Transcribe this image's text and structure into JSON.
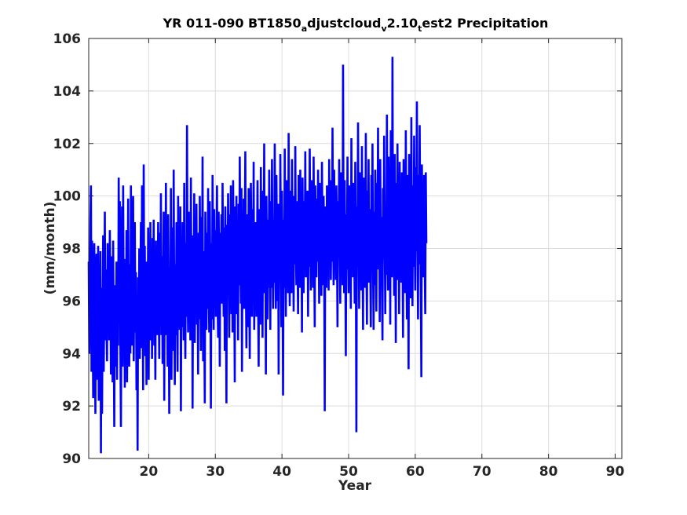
{
  "chart_data": {
    "type": "line",
    "title": {
      "part1": "YR 011-090 BT1850",
      "sub1": "a",
      "part2": "djustcloud",
      "sub2": "v",
      "part3": "2.10",
      "sub3": "t",
      "part4": "est2 Precipitation"
    },
    "xlabel": "Year",
    "ylabel": "(mm/month)",
    "xlim": [
      11,
      91
    ],
    "ylim": [
      90,
      106
    ],
    "xticks": [
      "20",
      "30",
      "40",
      "50",
      "60",
      "70",
      "80",
      "90"
    ],
    "yticks": [
      "90",
      "92",
      "94",
      "96",
      "98",
      "100",
      "102",
      "104",
      "106"
    ],
    "grid": true,
    "series": [
      {
        "color": "#0000ff",
        "x_start": 11.0,
        "x_step": 0.08333,
        "values": [
          97.5,
          94.0,
          96.0,
          99.0,
          100.4,
          93.3,
          98.3,
          96.0,
          92.3,
          95.5,
          98.2,
          94.6,
          91.7,
          96.8,
          97.8,
          93.0,
          95.1,
          98.1,
          92.2,
          96.9,
          94.8,
          97.9,
          90.2,
          96.5,
          91.7,
          95.5,
          98.5,
          93.3,
          96.0,
          99.4,
          94.5,
          97.2,
          95.0,
          93.7,
          98.2,
          95.4,
          97.0,
          94.5,
          98.7,
          96.3,
          93.2,
          97.7,
          95.2,
          92.9,
          98.3,
          94.8,
          91.2,
          96.6,
          93.5,
          95.3,
          97.5,
          93.0,
          97.4,
          94.3,
          100.7,
          95.7,
          99.8,
          94.3,
          91.2,
          96.2,
          99.6,
          93.5,
          100.4,
          95.4,
          97.6,
          92.7,
          96.0,
          93.9,
          98.7,
          92.9,
          96.1,
          99.9,
          94.7,
          93.5,
          97.4,
          94.0,
          100.4,
          96.8,
          94.3,
          98.5,
          100.0,
          93.7,
          96.6,
          99.0,
          94.8,
          97.1,
          92.6,
          95.3,
          90.3,
          96.9,
          94.0,
          98.0,
          93.8,
          96.7,
          99.0,
          94.2,
          100.4,
          96.5,
          92.6,
          101.2,
          95.7,
          98.1,
          93.9,
          97.5,
          92.8,
          96.6,
          94.5,
          98.8,
          93.0,
          97.6,
          95.2,
          99.0,
          94.5,
          96.9,
          93.8,
          98.4,
          95.8,
          99.1,
          94.3,
          96.4,
          93.0,
          98.3,
          95.6,
          97.2,
          94.7,
          99.0,
          96.2,
          93.8,
          98.6,
          95.3,
          100.1,
          94.7,
          97.7,
          93.6,
          96.4,
          99.4,
          92.2,
          97.8,
          95.8,
          100.5,
          94.7,
          96.9,
          93.5,
          99.3,
          96.5,
          91.7,
          97.3,
          94.8,
          100.3,
          93.0,
          96.8,
          98.8,
          94.1,
          101.0,
          95.8,
          92.8,
          97.4,
          94.7,
          99.0,
          96.2,
          93.3,
          100.0,
          95.5,
          97.8,
          94.9,
          99.6,
          91.8,
          97.0,
          95.0,
          99.0,
          96.5,
          94.5,
          100.5,
          95.6,
          93.8,
          98.2,
          95.4,
          102.7,
          96.5,
          94.8,
          99.4,
          95.7,
          97.6,
          94.5,
          100.7,
          96.0,
          98.5,
          91.9,
          97.4,
          95.8,
          100.1,
          94.4,
          98.9,
          96.0,
          99.7,
          95.1,
          97.3,
          93.2,
          98.6,
          95.3,
          100.0,
          97.1,
          94.1,
          99.2,
          96.0,
          101.5,
          93.7,
          97.9,
          95.5,
          92.1,
          99.4,
          96.4,
          94.9,
          98.6,
          95.7,
          100.3,
          96.6,
          94.8,
          99.8,
          96.8,
          91.9,
          98.2,
          95.3,
          100.8,
          97.4,
          94.9,
          99.5,
          96.6,
          98.7,
          95.4,
          97.5,
          100.4,
          96.0,
          94.6,
          99.4,
          96.8,
          93.5,
          98.6,
          97.0,
          99.3,
          95.9,
          100.5,
          97.6,
          95.4,
          98.8,
          94.1,
          99.6,
          96.5,
          92.1,
          98.9,
          96.3,
          100.1,
          97.0,
          94.6,
          99.3,
          96.8,
          100.4,
          95.5,
          98.6,
          94.8,
          100.6,
          97.9,
          96.6,
          92.9,
          99.6,
          97.3,
          100.0,
          95.5,
          98.3,
          94.5,
          99.7,
          96.6,
          101.5,
          97.8,
          95.9,
          100.3,
          93.3,
          98.6,
          96.8,
          99.9,
          95.7,
          98.3,
          101.7,
          96.6,
          94.2,
          99.3,
          97.6,
          95.0,
          100.3,
          96.5,
          93.8,
          98.6,
          100.5,
          97.9,
          95.4,
          99.5,
          96.5,
          101.3,
          94.9,
          98.2,
          96.3,
          99.0,
          95.4,
          97.7,
          100.6,
          96.0,
          93.5,
          99.5,
          97.5,
          95.1,
          101.1,
          96.8,
          98.8,
          94.6,
          100.2,
          97.5,
          102.0,
          96.3,
          98.5,
          93.2,
          100.0,
          97.2,
          95.3,
          99.1,
          96.5,
          101.0,
          97.7,
          94.9,
          99.8,
          96.5,
          101.4,
          98.0,
          95.7,
          99.1,
          96.7,
          102.0,
          97.5,
          95.7,
          100.8,
          98.2,
          96.0,
          99.7,
          93.2,
          98.5,
          96.9,
          101.6,
          97.8,
          95.0,
          100.2,
          97.6,
          92.4,
          99.1,
          96.5,
          101.8,
          98.3,
          95.4,
          100.6,
          97.3,
          99.5,
          96.3,
          102.4,
          97.8,
          95.8,
          100.2,
          98.7,
          96.3,
          101.4,
          97.1,
          99.4,
          95.6,
          100.0,
          97.4,
          101.9,
          98.1,
          96.6,
          99.8,
          97.4,
          95.5,
          100.8,
          98.1,
          96.5,
          101.0,
          97.4,
          99.2,
          94.8,
          100.7,
          97.8,
          96.3,
          99.8,
          98.1,
          101.7,
          96.9,
          99.3,
          97.6,
          100.2,
          95.4,
          99.4,
          97.3,
          101.8,
          98.5,
          96.4,
          100.6,
          97.9,
          99.3,
          96.5,
          101.5,
          97.8,
          95.0,
          100.4,
          98.3,
          96.9,
          99.9,
          97.5,
          101.0,
          98.8,
          95.9,
          100.5,
          97.1,
          99.5,
          96.2,
          101.3,
          98.4,
          96.6,
          100.0,
          97.6,
          91.8,
          99.6,
          98.3,
          96.5,
          100.4,
          97.9,
          99.6,
          96.4,
          101.4,
          98.2,
          100.6,
          96.8,
          99.1,
          97.5,
          102.6,
          98.8,
          96.6,
          101.0,
          97.9,
          99.2,
          96.8,
          100.4,
          98.4,
          95.0,
          99.8,
          97.7,
          101.4,
          98.3,
          95.9,
          100.9,
          97.6,
          99.3,
          96.6,
          105.0,
          98.2,
          96.3,
          100.6,
          97.7,
          93.9,
          99.3,
          97.2,
          101.5,
          98.6,
          96.3,
          100.4,
          97.9,
          99.2,
          95.7,
          102.2,
          97.5,
          99.8,
          96.9,
          100.5,
          98.3,
          95.9,
          101.3,
          97.7,
          91.0,
          99.6,
          97.3,
          102.8,
          98.6,
          95.7,
          100.9,
          97.3,
          99.6,
          96.4,
          101.9,
          98.2,
          94.9,
          100.7,
          97.8,
          99.3,
          96.5,
          102.4,
          97.6,
          95.1,
          100.2,
          98.1,
          101.4,
          96.7,
          99.5,
          97.5,
          95.0,
          100.8,
          98.2,
          102.0,
          97.3,
          94.9,
          99.4,
          96.6,
          101.0,
          97.9,
          95.6,
          100.5,
          98.0,
          102.6,
          97.2,
          99.8,
          95.2,
          101.4,
          97.9,
          99.2,
          96.4,
          94.5,
          100.3,
          97.6,
          102.3,
          98.6,
          95.5,
          99.5,
          97.0,
          103.1,
          98.1,
          96.4,
          101.5,
          97.4,
          100.0,
          95.1,
          102.5,
          98.6,
          96.9,
          105.3,
          97.8,
          99.8,
          96.2,
          101.6,
          98.4,
          94.4,
          100.5,
          97.4,
          102.0,
          96.8,
          99.3,
          95.5,
          101.3,
          97.9,
          99.7,
          96.7,
          100.9,
          98.0,
          94.6,
          101.4,
          97.6,
          99.8,
          96.3,
          102.5,
          98.3,
          95.3,
          100.8,
          97.6,
          93.4,
          101.6,
          97.9,
          99.3,
          96.1,
          103.0,
          98.0,
          95.8,
          100.4,
          97.3,
          102.3,
          98.5,
          96.4,
          101.1,
          97.9,
          103.6,
          98.6,
          95.3,
          100.8,
          97.4,
          102.7,
          98.8,
          96.5,
          93.1,
          101.2,
          98.5,
          99.6,
          96.9,
          100.8,
          97.5,
          95.5,
          100.9,
          98.2
        ]
      }
    ]
  }
}
